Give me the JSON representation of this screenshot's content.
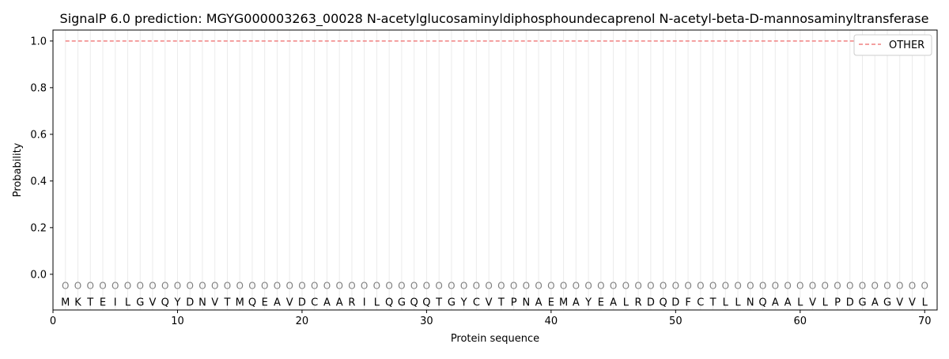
{
  "chart_data": {
    "type": "line",
    "title": "SignalP 6.0 prediction: MGYG000003263_00028 N-acetylglucosaminyldiphosphoundecaprenol N-acetyl-beta-D-mannosaminyltransferase",
    "xlabel": "Protein sequence",
    "ylabel": "Probability",
    "xlim": [
      0,
      71
    ],
    "ylim": [
      -0.153,
      1.047
    ],
    "xticks": [
      0,
      10,
      20,
      30,
      40,
      50,
      60,
      70
    ],
    "yticks": [
      "0.0",
      "0.2",
      "0.4",
      "0.6",
      "0.8",
      "1.0"
    ],
    "sequence": "MKTEILGVQYDNVTMQEAVDCAARILQGQQTGYCVTPNAEMAYEALRDQDFCTLLNQAALVLPDGAGVVL",
    "region_label": "O",
    "series": [
      {
        "name": "OTHER",
        "color": "#f08080",
        "style": "dashed",
        "x": [
          1,
          70
        ],
        "y": [
          1.0,
          1.0
        ]
      }
    ],
    "legend": "top-right",
    "grid": "vertical per residue"
  }
}
